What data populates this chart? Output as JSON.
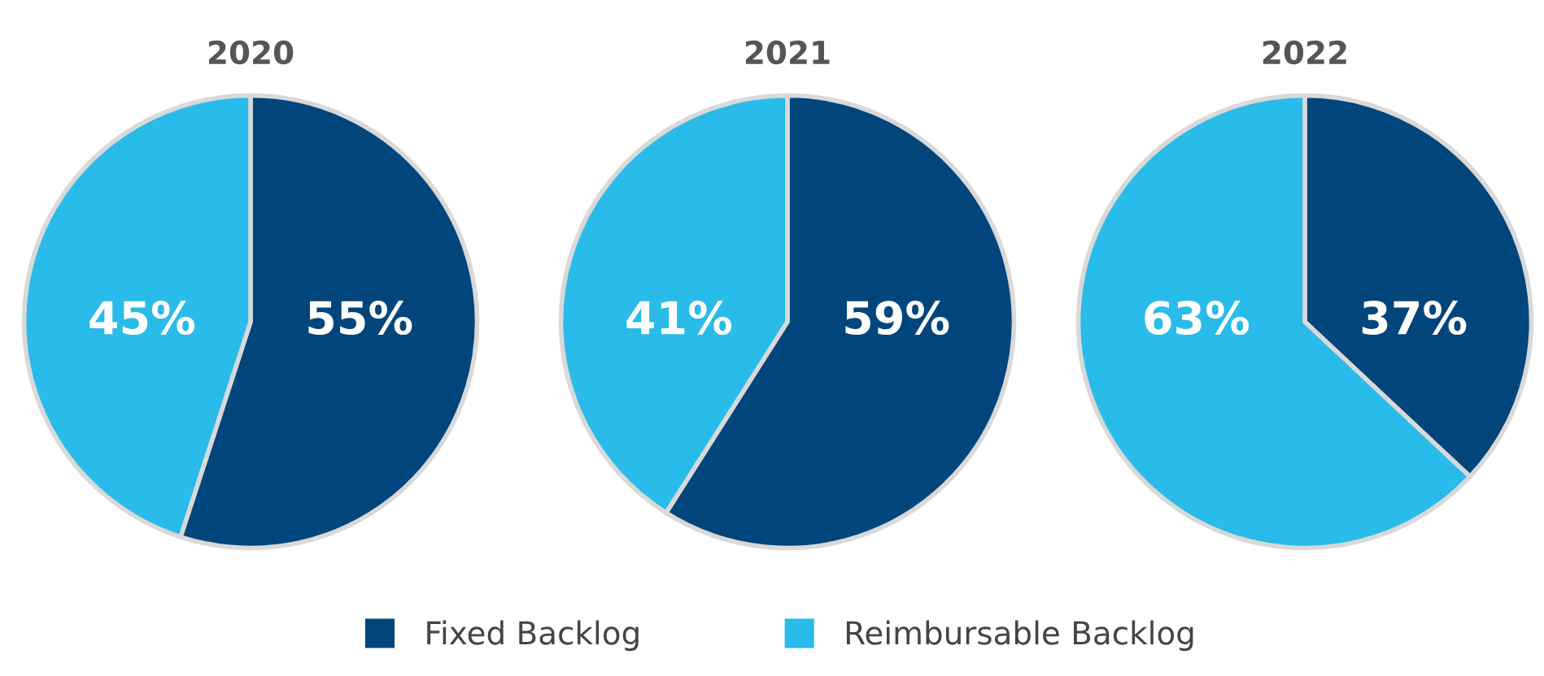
{
  "chart_data": [
    {
      "type": "pie",
      "title": "2020",
      "categories": [
        "Fixed Backlog",
        "Reimbursable Backlog"
      ],
      "values": [
        55,
        45
      ],
      "colors": [
        "#00457c",
        "#29bbe9"
      ],
      "value_labels": [
        "55%",
        "45%"
      ],
      "legend": "bottom"
    },
    {
      "type": "pie",
      "title": "2021",
      "categories": [
        null,
        null
      ],
      "values": [
        59,
        41
      ],
      "colors": [
        "#00457c",
        "#29bbe9"
      ],
      "value_labels": [
        "59%",
        "41%"
      ]
    },
    {
      "type": "pie",
      "title": "2022",
      "categories": [
        null,
        null
      ],
      "values": [
        37,
        63
      ],
      "colors": [
        "#00457c",
        "#29bbe9"
      ],
      "value_labels": [
        "37%",
        "63%"
      ]
    }
  ]
}
